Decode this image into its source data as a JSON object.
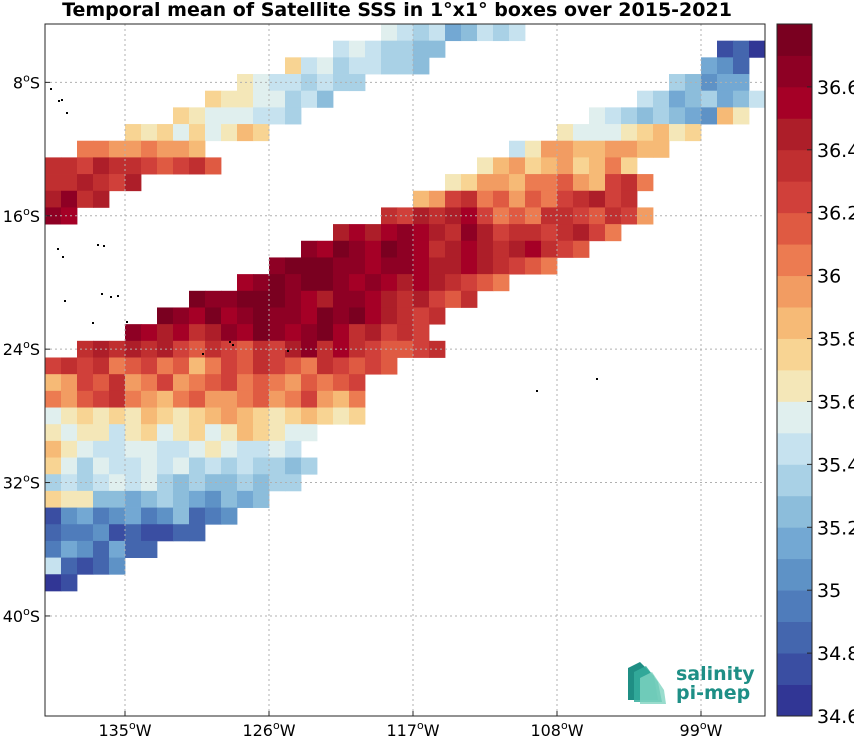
{
  "title": "Temporal mean of Satellite SSS in 1°x1° boxes over 2015-2021",
  "logo": {
    "line1": "salinity",
    "line2": "pi-mep"
  },
  "chart_data": {
    "type": "heatmap",
    "title": "Temporal mean of Satellite SSS in 1°x1° boxes over 2015-2021",
    "xlabel": "",
    "ylabel": "",
    "xlim": [
      -140,
      -95
    ],
    "ylim": [
      -46,
      -4.5
    ],
    "lon_ticks": [
      {
        "value": -135,
        "deg": "135",
        "hemi": "W"
      },
      {
        "value": -126,
        "deg": "126",
        "hemi": "W"
      },
      {
        "value": -117,
        "deg": "117",
        "hemi": "W"
      },
      {
        "value": -108,
        "deg": "108",
        "hemi": "W"
      },
      {
        "value": -99,
        "deg": "99",
        "hemi": "W"
      }
    ],
    "lat_ticks": [
      {
        "value": -8,
        "deg": "8",
        "hemi": "S"
      },
      {
        "value": -16,
        "deg": "16",
        "hemi": "S"
      },
      {
        "value": -24,
        "deg": "24",
        "hemi": "S"
      },
      {
        "value": -32,
        "deg": "32",
        "hemi": "S"
      },
      {
        "value": -40,
        "deg": "40",
        "hemi": "S"
      }
    ],
    "grid": true,
    "colorbar": {
      "min": 34.6,
      "max": 36.8,
      "step": 0.1,
      "tick_values": [
        "34.6",
        "34.8",
        "35",
        "35.2",
        "35.4",
        "35.6",
        "35.8",
        "36",
        "36.2",
        "36.4",
        "36.6"
      ],
      "colors": [
        "#313695",
        "#3a4ea2",
        "#4466ae",
        "#4f7cbb",
        "#5e92c6",
        "#73a8d3",
        "#8cbddb",
        "#a9d1e6",
        "#c6e2ef",
        "#e0efee",
        "#f4e7b8",
        "#f8d493",
        "#f6ba76",
        "#f29c62",
        "#ec7b51",
        "#df5a42",
        "#d0403a",
        "#c02f30",
        "#ad1e29",
        "#a50026",
        "#8e0024",
        "#7a0020"
      ]
    },
    "grid_origin": {
      "lon_west": -140,
      "lat_north": -4.5,
      "cell_deg": 1
    },
    "rows": [
      {
        "lat": -4.5,
        "lon_start": -119,
        "values": [
          35.5,
          35.4,
          35.3,
          35.4,
          35.1,
          35.2,
          35.4,
          35.3,
          35.4
        ]
      },
      {
        "lat": -5.5,
        "lon_start": -122,
        "values": [
          35.4,
          35.5,
          35.4,
          35.3,
          35.3,
          35.2,
          35.2
        ]
      },
      {
        "lat": -5.5,
        "lon_start": -98,
        "values": [
          34.7,
          34.8,
          34.6
        ]
      },
      {
        "lat": -6.5,
        "lon_start": -125,
        "values": [
          35.7,
          35.4,
          35.5,
          35.3,
          35.4,
          35.4,
          35.3,
          35.3,
          35.2
        ]
      },
      {
        "lat": -6.5,
        "lon_start": -99,
        "values": [
          35.1,
          35.0,
          34.8
        ]
      },
      {
        "lat": -7.5,
        "lon_start": -128,
        "values": [
          35.6,
          35.5,
          35.4,
          35.4,
          35.3,
          35.4,
          35.3,
          35.3
        ]
      },
      {
        "lat": -7.5,
        "lon_start": -101,
        "values": [
          35.3,
          35.2,
          35.0,
          35.1,
          35.1
        ]
      },
      {
        "lat": -8.5,
        "lon_start": -130,
        "values": [
          35.7,
          35.6,
          35.6,
          35.5,
          35.5,
          35.3,
          35.4,
          35.2
        ]
      },
      {
        "lat": -8.5,
        "lon_start": -103,
        "values": [
          35.4,
          35.3,
          35.1,
          35.2,
          35.3,
          35.1,
          35.2,
          35.4
        ]
      },
      {
        "lat": -9.5,
        "lon_start": -132,
        "values": [
          35.7,
          35.6,
          35.5,
          35.5,
          35.5,
          35.4,
          35.4,
          35.3
        ]
      },
      {
        "lat": -9.5,
        "lon_start": -106,
        "values": [
          35.5,
          35.4,
          35.3,
          35.2,
          35.3,
          35.2,
          35.1,
          35.0,
          35.8,
          35.6
        ]
      },
      {
        "lat": -10.5,
        "lon_start": -135,
        "values": [
          35.7,
          35.6,
          35.7,
          35.5,
          35.7,
          35.5,
          35.6,
          35.8,
          35.7
        ]
      },
      {
        "lat": -10.5,
        "lon_start": -108,
        "values": [
          35.6,
          35.5,
          35.5,
          35.5,
          35.6,
          35.7,
          35.8,
          35.6,
          35.7
        ]
      },
      {
        "lat": -11.5,
        "lon_start": -138,
        "values": [
          36.0,
          36.0,
          35.9,
          35.9,
          36.0,
          35.9,
          35.9,
          35.8
        ]
      },
      {
        "lat": -11.5,
        "lon_start": -111,
        "values": [
          35.4,
          35.6,
          35.9,
          35.9,
          35.8,
          35.8,
          35.9,
          35.9,
          35.8,
          35.8
        ]
      },
      {
        "lat": -12.5,
        "lon_start": -140,
        "values": [
          36.3,
          36.3,
          36.2,
          36.4,
          36.3,
          36.3,
          36.2,
          36.1,
          36.2,
          36.3,
          36.1
        ]
      },
      {
        "lat": -12.5,
        "lon_start": -113,
        "values": [
          35.6,
          35.8,
          35.9,
          35.7,
          35.8,
          35.9,
          35.7,
          35.8,
          36.0,
          35.7
        ]
      },
      {
        "lat": -13.5,
        "lon_start": -140,
        "values": [
          36.3,
          36.3,
          36.4,
          36.3,
          36.2,
          36.4
        ]
      },
      {
        "lat": -13.5,
        "lon_start": -115,
        "values": [
          35.6,
          35.7,
          35.9,
          35.9,
          35.8,
          36.0,
          36.0,
          36.1,
          35.9,
          35.8,
          36.2,
          36.3,
          36.0
        ]
      },
      {
        "lat": -14.5,
        "lon_start": -140,
        "values": [
          36.4,
          36.6,
          36.3,
          36.4
        ]
      },
      {
        "lat": -14.5,
        "lon_start": -117,
        "values": [
          35.8,
          35.9,
          36.2,
          36.3,
          36.0,
          36.1,
          35.9,
          36.1,
          36.0,
          36.2,
          36.3,
          36.4,
          36.2,
          36.3
        ]
      },
      {
        "lat": -15.5,
        "lon_start": -140,
        "values": [
          36.6,
          36.5
        ]
      },
      {
        "lat": -15.5,
        "lon_start": -119,
        "values": [
          36.3,
          36.2,
          36.4,
          36.3,
          36.4,
          36.5,
          36.2,
          36.0,
          36.1,
          36.0,
          36.3,
          36.3,
          36.2,
          36.1,
          36.3,
          36.2,
          35.9
        ]
      },
      {
        "lat": -16.5,
        "lon_start": -122,
        "values": [
          36.4,
          36.5,
          36.4,
          36.5,
          36.6,
          36.5,
          36.4,
          36.3,
          36.6,
          36.4,
          36.2,
          36.3,
          36.3,
          36.2,
          36.3,
          36.4,
          36.2,
          36.0
        ]
      },
      {
        "lat": -17.5,
        "lon_start": -124,
        "values": [
          36.6,
          36.5,
          36.7,
          36.6,
          36.5,
          36.7,
          36.6,
          36.5,
          36.3,
          36.4,
          36.5,
          36.4,
          36.3,
          36.4,
          36.5,
          36.3,
          36.2,
          36.1
        ]
      },
      {
        "lat": -18.5,
        "lon_start": -126,
        "values": [
          36.6,
          36.7,
          36.7,
          36.7,
          36.6,
          36.6,
          36.5,
          36.6,
          36.6,
          36.5,
          36.4,
          36.4,
          36.5,
          36.4,
          36.3,
          36.2,
          36.1,
          36.0
        ]
      },
      {
        "lat": -19.5,
        "lon_start": -128,
        "values": [
          36.5,
          36.6,
          36.7,
          36.6,
          36.7,
          36.7,
          36.6,
          36.5,
          36.6,
          36.5,
          36.4,
          36.5,
          36.4,
          36.3,
          36.2,
          36.1,
          36.0
        ]
      },
      {
        "lat": -20.5,
        "lon_start": -131,
        "values": [
          36.7,
          36.6,
          36.6,
          36.7,
          36.7,
          36.8,
          36.6,
          36.5,
          36.4,
          36.6,
          36.6,
          36.5,
          36.4,
          36.3,
          36.4,
          36.2,
          36.1,
          36.3
        ]
      },
      {
        "lat": -21.5,
        "lon_start": -133,
        "values": [
          36.7,
          36.6,
          36.5,
          36.7,
          36.5,
          36.6,
          36.7,
          36.6,
          36.6,
          36.5,
          36.7,
          36.6,
          36.7,
          36.5,
          36.4,
          36.3,
          36.2,
          36.3
        ]
      },
      {
        "lat": -22.5,
        "lon_start": -135,
        "values": [
          36.6,
          36.5,
          36.4,
          36.5,
          36.3,
          36.4,
          36.6,
          36.5,
          36.7,
          36.6,
          36.5,
          36.6,
          36.7,
          36.5,
          36.3,
          36.4,
          36.2,
          36.3,
          36.2
        ]
      },
      {
        "lat": -23.5,
        "lon_start": -138,
        "values": [
          36.3,
          36.4,
          36.3,
          36.4,
          36.3,
          36.4,
          36.2,
          36.1,
          36.3,
          36.2,
          36.1,
          36.3,
          36.2,
          36.4,
          36.6,
          36.3,
          36.5,
          36.3,
          36.2,
          36.1,
          36.1,
          36.2,
          36.3
        ]
      },
      {
        "lat": -24.5,
        "lon_start": -140,
        "values": [
          36.2,
          36.3,
          36.2,
          36.3,
          36.0,
          36.1,
          36.2,
          36.0,
          36.1,
          35.8,
          36.0,
          36.2,
          36.1,
          36.3,
          36.2,
          36.1,
          36.0,
          36.3,
          36.2,
          36.1,
          36.2,
          36.1
        ]
      },
      {
        "lat": -25.5,
        "lon_start": -140,
        "values": [
          35.8,
          35.9,
          36.2,
          36.1,
          36.3,
          35.9,
          36.0,
          36.2,
          35.9,
          36.0,
          36.1,
          36.2,
          36.0,
          36.1,
          36.0,
          35.9,
          36.1,
          36.0,
          36.1,
          36.2
        ]
      },
      {
        "lat": -26.5,
        "lon_start": -140,
        "values": [
          36.0,
          35.9,
          36.1,
          36.2,
          36.3,
          36.0,
          35.9,
          35.8,
          36.0,
          36.1,
          35.9,
          35.9,
          36.0,
          36.1,
          35.9,
          36.0,
          36.2,
          35.9,
          35.8,
          36.0
        ]
      },
      {
        "lat": -27.5,
        "lon_start": -140,
        "values": [
          35.5,
          35.6,
          35.7,
          35.6,
          35.7,
          35.6,
          35.8,
          35.7,
          35.6,
          35.7,
          35.8,
          35.9,
          35.8,
          35.7,
          35.6,
          35.7,
          35.8,
          35.7,
          35.6,
          35.7
        ]
      },
      {
        "lat": -28.5,
        "lon_start": -140,
        "values": [
          35.6,
          35.5,
          35.6,
          35.6,
          35.4,
          35.6,
          35.7,
          35.5,
          35.6,
          35.7,
          35.5,
          35.6,
          35.8,
          35.7,
          35.6,
          35.5,
          35.5
        ]
      },
      {
        "lat": -29.5,
        "lon_start": -140,
        "values": [
          35.8,
          35.6,
          35.5,
          35.4,
          35.4,
          35.5,
          35.5,
          35.4,
          35.4,
          35.5,
          35.6,
          35.5,
          35.4,
          35.4,
          35.5,
          35.4
        ]
      },
      {
        "lat": -30.5,
        "lon_start": -140,
        "values": [
          35.7,
          35.5,
          35.3,
          35.5,
          35.4,
          35.4,
          35.5,
          35.4,
          35.5,
          35.3,
          35.4,
          35.3,
          35.4,
          35.3,
          35.3,
          35.2,
          35.3
        ]
      },
      {
        "lat": -31.5,
        "lon_start": -140,
        "values": [
          35.3,
          35.4,
          35.3,
          35.4,
          35.5,
          35.4,
          35.5,
          35.3,
          35.2,
          35.3,
          35.2,
          35.2,
          35.3,
          35.2,
          35.3,
          35.3
        ]
      },
      {
        "lat": -32.5,
        "lon_start": -140,
        "values": [
          35.7,
          35.6,
          35.6,
          35.2,
          35.2,
          35.1,
          35.2,
          35.3,
          35.2,
          35.1,
          35.0,
          35.2,
          35.1,
          35.2
        ]
      },
      {
        "lat": -33.5,
        "lon_start": -140,
        "values": [
          34.7,
          35.0,
          35.1,
          34.9,
          35.0,
          35.1,
          34.9,
          35.0,
          35.2,
          34.8,
          34.9,
          35.0
        ]
      },
      {
        "lat": -34.5,
        "lon_start": -140,
        "values": [
          34.8,
          34.9,
          34.9,
          35.0,
          34.7,
          34.8,
          34.7,
          34.7,
          34.8,
          34.8
        ]
      },
      {
        "lat": -35.5,
        "lon_start": -140,
        "values": [
          34.9,
          35.1,
          35.0,
          34.8,
          35.1,
          34.8,
          34.8
        ]
      },
      {
        "lat": -36.5,
        "lon_start": -140,
        "values": [
          35.4,
          34.8,
          34.7,
          34.8,
          35.0
        ]
      },
      {
        "lat": -37.5,
        "lon_start": -140,
        "values": [
          34.6,
          34.7
        ]
      }
    ]
  }
}
